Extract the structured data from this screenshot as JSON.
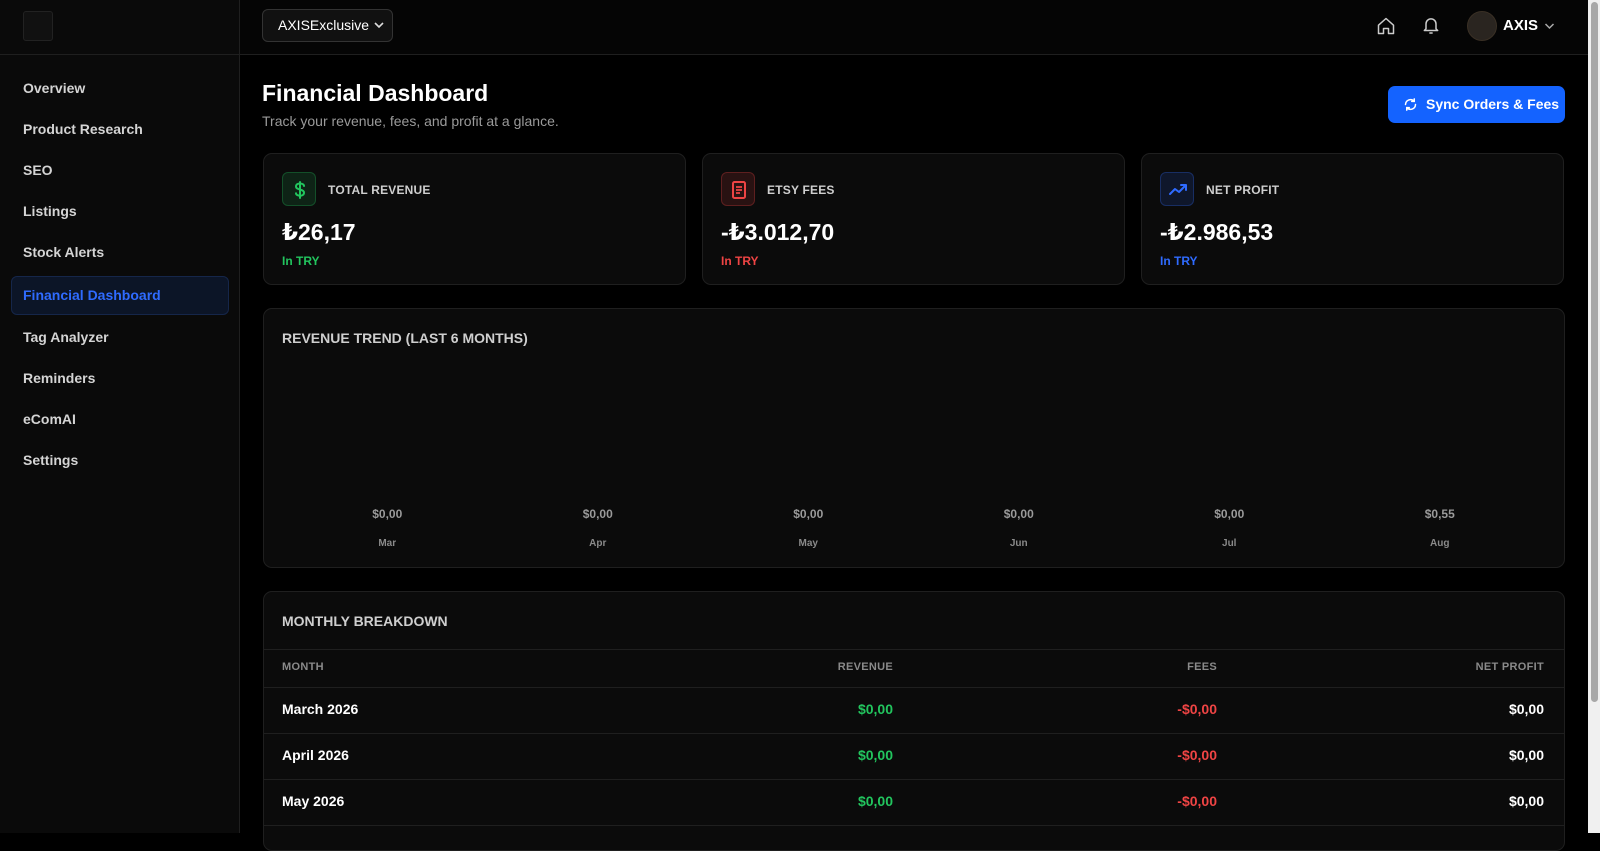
{
  "topbar": {
    "store": "AXISExclusive",
    "user": "AXIS"
  },
  "sidebar": {
    "items": [
      "Overview",
      "Product Research",
      "SEO",
      "Listings",
      "Stock Alerts",
      "Financial Dashboard",
      "Tag Analyzer",
      "Reminders",
      "eComAI",
      "Settings"
    ],
    "active": "Financial Dashboard"
  },
  "header": {
    "title": "Financial Dashboard",
    "subtitle": "Track your revenue, fees, and profit at a glance.",
    "button": "Sync Orders & Fees"
  },
  "cards": [
    {
      "label": "TOTAL REVENUE",
      "value": "₺26,17",
      "note": "In TRY",
      "color": "#22c55e"
    },
    {
      "label": "ETSY FEES",
      "value": "-₺3.012,70",
      "note": "In TRY",
      "color": "#ef4444"
    },
    {
      "label": "NET PROFIT",
      "value": "-₺2.986,53",
      "note": "In TRY",
      "color": "#2f6bff"
    }
  ],
  "trend": {
    "title": "REVENUE TREND (LAST 6 MONTHS)",
    "months": [
      "Mar",
      "Apr",
      "May",
      "Jun",
      "Jul",
      "Aug"
    ],
    "values": [
      "$0,00",
      "$0,00",
      "$0,00",
      "$0,00",
      "$0,00",
      "$0,55"
    ]
  },
  "table": {
    "title": "MONTHLY BREAKDOWN",
    "headers": [
      "MONTH",
      "REVENUE",
      "FEES",
      "NET PROFIT"
    ],
    "rows": [
      [
        "March 2026",
        "$0,00",
        "-$0,00",
        "$0,00"
      ],
      [
        "April 2026",
        "$0,00",
        "-$0,00",
        "$0,00"
      ],
      [
        "May 2026",
        "$0,00",
        "-$0,00",
        "$0,00"
      ]
    ]
  }
}
